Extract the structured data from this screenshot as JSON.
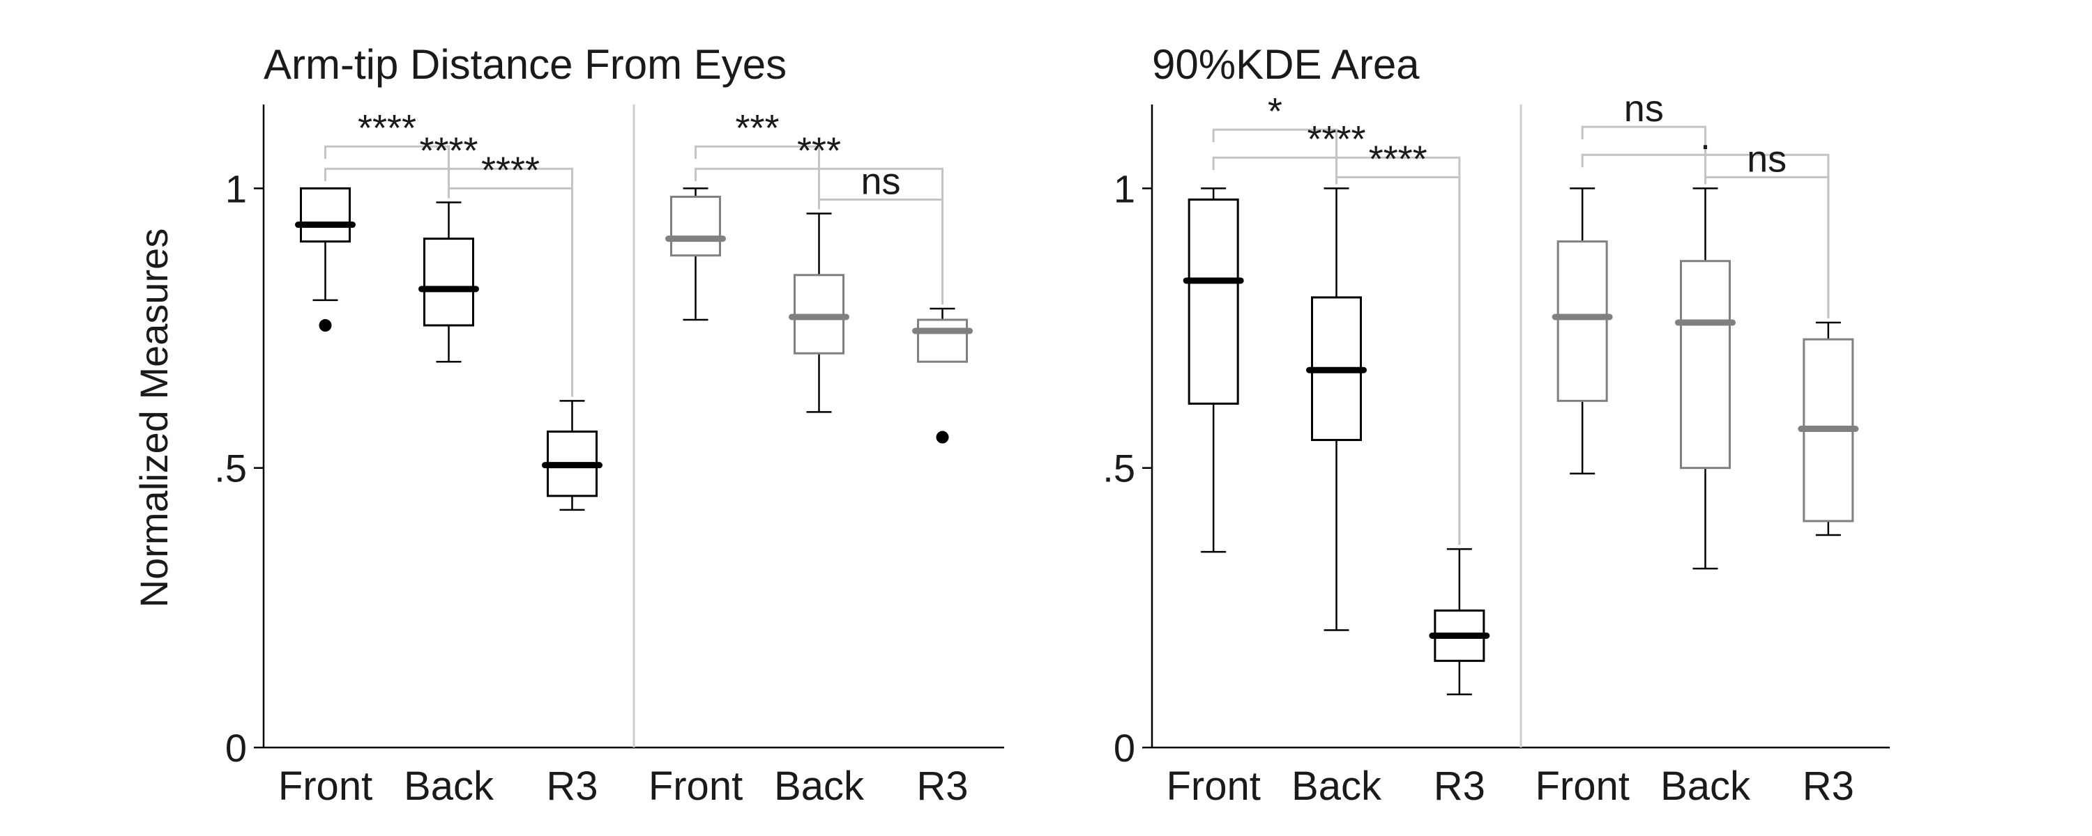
{
  "ylabel": "Normalized Measures",
  "colors": {
    "black": "#000000",
    "gray": "#808080",
    "bracket": "#c4c4c4",
    "divider": "#cccccc",
    "axis": "#000000"
  },
  "chart_data": [
    {
      "type": "box",
      "title": "Arm-tip Distance From Eyes",
      "ylim": [
        0,
        1.15
      ],
      "yticks": [
        {
          "value": 0,
          "label": "0"
        },
        {
          "value": 0.5,
          "label": ".5"
        },
        {
          "value": 1,
          "label": "1"
        }
      ],
      "groups": [
        {
          "color": "black",
          "boxes": [
            {
              "label": "Front",
              "whisker_low": 0.8,
              "q1": 0.905,
              "median": 0.935,
              "q3": 1.0,
              "whisker_high": 1.0,
              "outliers": [
                0.755
              ]
            },
            {
              "label": "Back",
              "whisker_low": 0.69,
              "q1": 0.755,
              "median": 0.82,
              "q3": 0.91,
              "whisker_high": 0.975,
              "outliers": []
            },
            {
              "label": "R3",
              "whisker_low": 0.425,
              "q1": 0.45,
              "median": 0.505,
              "q3": 0.565,
              "whisker_high": 0.62,
              "outliers": []
            }
          ],
          "comparisons": [
            {
              "from": 0,
              "to": 1,
              "level": 1.075,
              "label": "****"
            },
            {
              "from": 0,
              "to": 2,
              "level": 1.035,
              "label": "****"
            },
            {
              "from": 1,
              "to": 2,
              "level": 1.0,
              "label": "****"
            }
          ]
        },
        {
          "color": "gray",
          "boxes": [
            {
              "label": "Front",
              "whisker_low": 0.765,
              "q1": 0.88,
              "median": 0.91,
              "q3": 0.985,
              "whisker_high": 1.0,
              "outliers": []
            },
            {
              "label": "Back",
              "whisker_low": 0.6,
              "q1": 0.705,
              "median": 0.77,
              "q3": 0.845,
              "whisker_high": 0.955,
              "outliers": []
            },
            {
              "label": "R3",
              "whisker_low": 0.69,
              "q1": 0.69,
              "median": 0.745,
              "q3": 0.765,
              "whisker_high": 0.785,
              "outliers": [
                0.555
              ]
            }
          ],
          "comparisons": [
            {
              "from": 0,
              "to": 1,
              "level": 1.075,
              "label": "***"
            },
            {
              "from": 0,
              "to": 2,
              "level": 1.035,
              "label": "***"
            },
            {
              "from": 1,
              "to": 2,
              "level": 0.98,
              "label": "ns"
            }
          ]
        }
      ]
    },
    {
      "type": "box",
      "title": "90%KDE Area",
      "ylim": [
        0,
        1.15
      ],
      "yticks": [
        {
          "value": 0,
          "label": "0"
        },
        {
          "value": 0.5,
          "label": ".5"
        },
        {
          "value": 1,
          "label": "1"
        }
      ],
      "groups": [
        {
          "color": "black",
          "boxes": [
            {
              "label": "Front",
              "whisker_low": 0.35,
              "q1": 0.615,
              "median": 0.835,
              "q3": 0.98,
              "whisker_high": 1.0,
              "outliers": []
            },
            {
              "label": "Back",
              "whisker_low": 0.21,
              "q1": 0.55,
              "median": 0.675,
              "q3": 0.805,
              "whisker_high": 1.0,
              "outliers": []
            },
            {
              "label": "R3",
              "whisker_low": 0.095,
              "q1": 0.155,
              "median": 0.2,
              "q3": 0.245,
              "whisker_high": 0.355,
              "outliers": []
            }
          ],
          "comparisons": [
            {
              "from": 0,
              "to": 1,
              "level": 1.105,
              "label": "*"
            },
            {
              "from": 0,
              "to": 2,
              "level": 1.055,
              "label": "****"
            },
            {
              "from": 1,
              "to": 2,
              "level": 1.02,
              "label": "****"
            }
          ]
        },
        {
          "color": "gray",
          "boxes": [
            {
              "label": "Front",
              "whisker_low": 0.49,
              "q1": 0.62,
              "median": 0.77,
              "q3": 0.905,
              "whisker_high": 1.0,
              "outliers": []
            },
            {
              "label": "Back",
              "whisker_low": 0.32,
              "q1": 0.5,
              "median": 0.76,
              "q3": 0.87,
              "whisker_high": 1.0,
              "outliers": []
            },
            {
              "label": "R3",
              "whisker_low": 0.38,
              "q1": 0.405,
              "median": 0.57,
              "q3": 0.73,
              "whisker_high": 0.76,
              "outliers": []
            }
          ],
          "comparisons": [
            {
              "from": 0,
              "to": 1,
              "level": 1.11,
              "label": "ns"
            },
            {
              "from": 0,
              "to": 2,
              "level": 1.06,
              "label": "."
            },
            {
              "from": 1,
              "to": 2,
              "level": 1.02,
              "label": "ns"
            }
          ]
        }
      ]
    }
  ]
}
